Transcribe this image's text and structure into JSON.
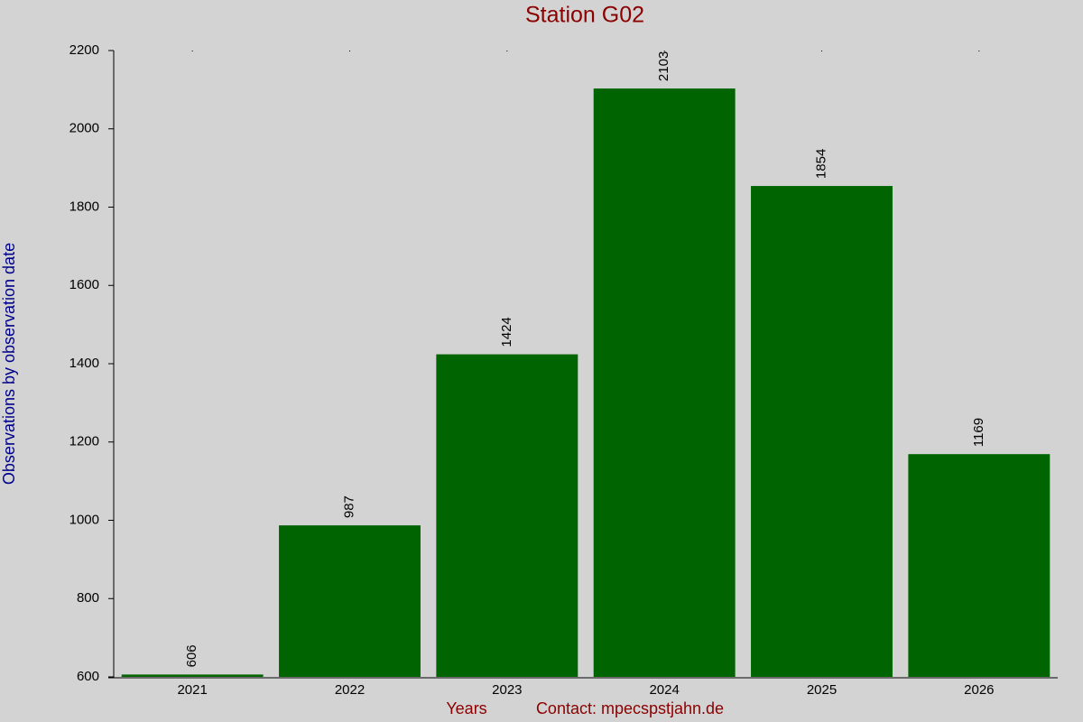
{
  "chart_data": {
    "type": "bar",
    "title": "Station G02",
    "x_label": "Years",
    "y_label": "Observations by observation date",
    "annotation": "Contact: mpecspstjahn.de",
    "categories": [
      "2021",
      "2022",
      "2023",
      "2024",
      "2025",
      "2026"
    ],
    "values": [
      606,
      987,
      1424,
      2103,
      1854,
      1169
    ],
    "color": "#006400",
    "ylim": [
      600,
      2200
    ],
    "yticks": [
      600,
      800,
      1000,
      1200,
      1400,
      1600,
      1800,
      2000,
      2200
    ],
    "grid": false
  }
}
